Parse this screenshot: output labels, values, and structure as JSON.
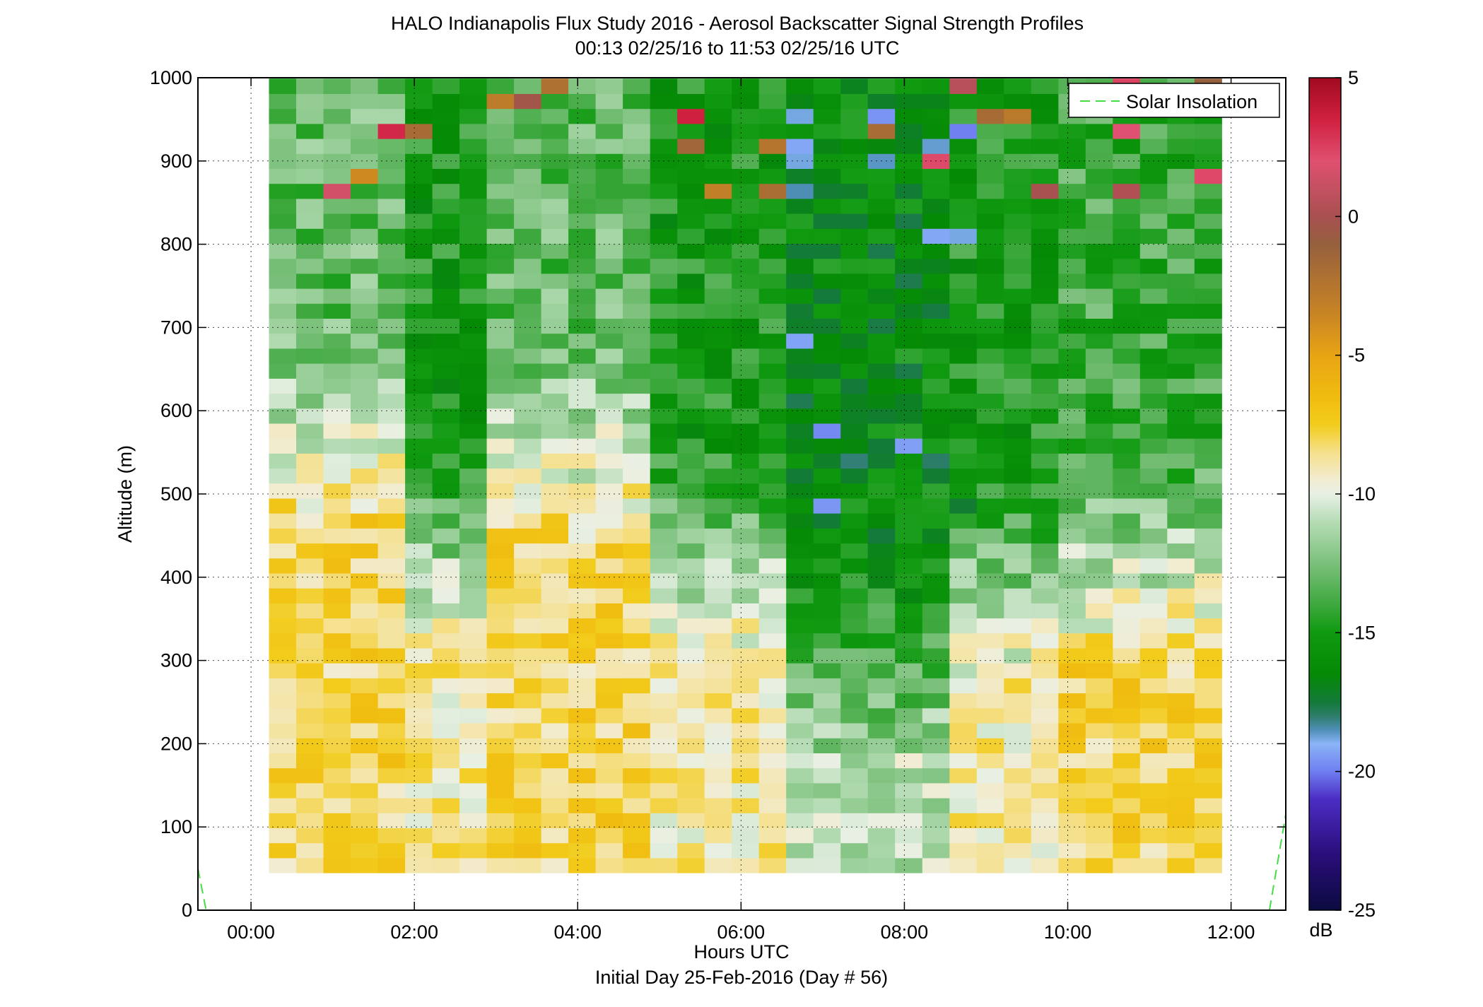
{
  "chart_data": {
    "type": "heatmap",
    "title": "HALO Indianapolis Flux Study 2016 - Aerosol Backscatter Signal Strength Profiles",
    "subtitle": "00:13 02/25/16 to 11:53 02/25/16  UTC",
    "xlabel": "Hours UTC",
    "xlabel2": "Initial Day 25-Feb-2016 (Day # 56)",
    "ylabel": "Altitude (m)",
    "colorbar_label": "dB",
    "xlim": [
      -0.65,
      12.67
    ],
    "ylim": [
      0,
      1000
    ],
    "clim": [
      -25,
      5
    ],
    "grid": true,
    "x_ticks": [
      0,
      2,
      4,
      6,
      8,
      10,
      12
    ],
    "x_tick_labels": [
      "00:00",
      "02:00",
      "04:00",
      "06:00",
      "08:00",
      "10:00",
      "12:00"
    ],
    "y_ticks": [
      0,
      100,
      200,
      300,
      400,
      500,
      600,
      700,
      800,
      900,
      1000
    ],
    "y_tick_labels": [
      "0",
      "100",
      "200",
      "300",
      "400",
      "500",
      "600",
      "700",
      "800",
      "900",
      "1000"
    ],
    "colorbar_ticks": [
      5,
      0,
      -5,
      -10,
      -15,
      -20,
      -25
    ],
    "colorbar_tick_labels": [
      "5",
      "0",
      "-5",
      "-10",
      "-15",
      "-20",
      "-25"
    ],
    "legend": {
      "entries": [
        "Solar Insolation"
      ],
      "location": "top-right"
    },
    "profile_start_hour": 0.22,
    "profile_step_hours": 0.3333,
    "profile_count": 35,
    "altitude_start_m": 45,
    "altitude_step_m": 18,
    "altitude_bin_count": 53,
    "profile_regimes": [
      {
        "from_hour": 0.2,
        "to_hour": 2.0,
        "boundary_layer_top_m": 450,
        "lower_db": -8,
        "upper_db": -13
      },
      {
        "from_hour": 2.0,
        "to_hour": 2.8,
        "boundary_layer_top_m": 300,
        "lower_db": -9,
        "upper_db": -15
      },
      {
        "from_hour": 2.8,
        "to_hour": 4.9,
        "boundary_layer_top_m": 420,
        "lower_db": -8,
        "upper_db": -13
      },
      {
        "from_hour": 4.9,
        "to_hour": 6.5,
        "boundary_layer_top_m": 300,
        "lower_db": -9,
        "upper_db": -15
      },
      {
        "from_hour": 6.5,
        "to_hour": 8.6,
        "boundary_layer_top_m": 160,
        "lower_db": -11,
        "upper_db": -16
      },
      {
        "from_hour": 8.6,
        "to_hour": 10.0,
        "boundary_layer_top_m": 260,
        "lower_db": -9,
        "upper_db": -15
      },
      {
        "from_hour": 10.0,
        "to_hour": 11.9,
        "boundary_layer_top_m": 280,
        "lower_db": -8,
        "upper_db": -14
      }
    ],
    "solar_insolation_curve": [
      {
        "x": -0.65,
        "y": 50
      },
      {
        "x": -0.55,
        "y": 0
      },
      {
        "x": 12.47,
        "y": 0
      },
      {
        "x": 12.67,
        "y": 115
      }
    ]
  },
  "colormap": [
    "#0b0b40",
    "#2a0d7a",
    "#4b2dc4",
    "#6f7ef0",
    "#8ab4f7",
    "#4f8fb7",
    "#2d7d6a",
    "#137a3a",
    "#058a05",
    "#0f9a10",
    "#3da83d",
    "#7bc07b",
    "#b5dcb5",
    "#e8f0e4",
    "#f2ecd2",
    "#f5e08c",
    "#f2cc1c",
    "#f0bc10",
    "#e8a414",
    "#c88424",
    "#96603e",
    "#a85050",
    "#e05070",
    "#d02040",
    "#a00a20"
  ],
  "colormap_positions_db": [
    -25,
    -23,
    -21,
    -20,
    -19,
    -18.5,
    -18,
    -17.5,
    -16.5,
    -15,
    -14,
    -12.5,
    -11,
    -10,
    -9.5,
    -8.5,
    -7.5,
    -6.5,
    -5,
    -3.5,
    -1,
    0,
    2,
    3.5,
    5
  ]
}
